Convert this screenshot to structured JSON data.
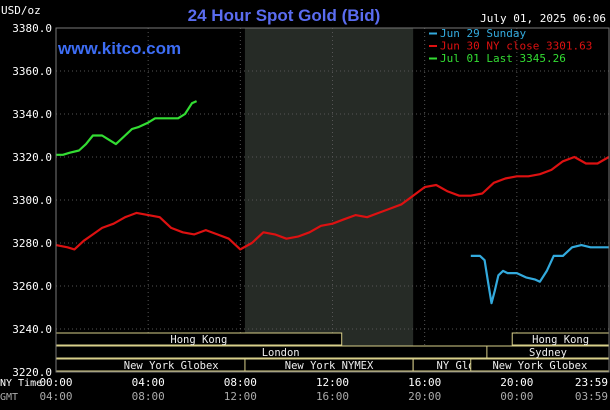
{
  "chart_data": {
    "type": "line",
    "title": "24 Hour Spot Gold (Bid)",
    "watermark": "www.kitco.com",
    "unit_label": "USD/oz",
    "date_label": "July 01, 2025 06:06",
    "ylim": [
      3220,
      3380
    ],
    "y_ticks": [
      "3380.0",
      "3360.0",
      "3340.0",
      "3320.0",
      "3300.0",
      "3280.0",
      "3260.0",
      "3240.0",
      "3220.0"
    ],
    "x_ticks": [
      "00:00",
      "04:00",
      "08:00",
      "12:00",
      "16:00",
      "20:00",
      "23:59"
    ],
    "x_ticks_gmt": [
      "04:00",
      "08:00",
      "12:00",
      "16:00",
      "20:00",
      "00:00",
      "03:59"
    ],
    "x_axis_label_top": "NY Time",
    "x_axis_label_bottom": "GMT",
    "background_color": "#000000",
    "plot_color": "#000000",
    "shade_color": "#262b26",
    "grid": true,
    "legend": [
      {
        "text": "Jun 29 Sunday",
        "color": "#33aadd"
      },
      {
        "text": "Jun 30 NY close 3301.63",
        "color": "#dd1111"
      },
      {
        "text": "Jul 01 Last 3345.26",
        "color": "#33dd33"
      }
    ],
    "sessions": [
      {
        "label": "Hong Kong",
        "row": 1,
        "start": 0,
        "end": 12.4
      },
      {
        "label": "London",
        "row": 2,
        "start": 0,
        "end": 19.5
      },
      {
        "label": "New York Globex",
        "row": 3,
        "start": 0,
        "end": 10
      },
      {
        "label": "New York NYMEX",
        "row": 3,
        "start": 8.2,
        "end": 15.5
      },
      {
        "label": "NY Globex",
        "row": 3,
        "start": 15.5,
        "end": 20
      },
      {
        "label": "Hong Kong",
        "row": 1,
        "start": 19.8,
        "end": 24
      },
      {
        "label": "Sydney",
        "row": 2,
        "start": 18.7,
        "end": 24
      },
      {
        "label": "New York Globex",
        "row": 3,
        "start": 18,
        "end": 24
      }
    ],
    "series": [
      {
        "color": "#dd1111",
        "x": [
          0,
          0.5,
          0.8,
          1.2,
          1.6,
          2,
          2.5,
          3,
          3.5,
          4,
          4.5,
          5,
          5.5,
          6,
          6.5,
          7,
          7.5,
          8,
          8.5,
          9,
          9.5,
          10,
          10.5,
          11,
          11.5,
          12,
          12.5,
          13,
          13.5,
          14,
          14.5,
          15,
          15.5,
          16,
          16.5,
          17,
          17.5,
          18,
          18.5,
          19,
          19.5,
          20,
          20.5,
          21,
          21.5,
          22,
          22.5,
          23,
          23.5,
          23.99
        ],
        "values": [
          3279,
          3278,
          3277,
          3281,
          3284,
          3287,
          3289,
          3292,
          3294,
          3293,
          3292,
          3287,
          3285,
          3284,
          3286,
          3284,
          3282,
          3277,
          3280,
          3285,
          3284,
          3282,
          3283,
          3285,
          3288,
          3289,
          3291,
          3293,
          3292,
          3294,
          3296,
          3298,
          3302,
          3306,
          3307,
          3304,
          3302,
          3302,
          3303,
          3308,
          3310,
          3311,
          3311,
          3312,
          3314,
          3318,
          3320,
          3317,
          3317,
          3320
        ]
      },
      {
        "color": "#33aadd",
        "x": [
          18,
          18.4,
          18.6,
          18.75,
          18.9,
          19.05,
          19.2,
          19.4,
          19.6,
          20,
          20.4,
          20.8,
          21,
          21.3,
          21.6,
          22,
          22.4,
          22.8,
          23.2,
          23.6,
          23.99
        ],
        "values": [
          3274,
          3274,
          3272,
          3262,
          3252,
          3258,
          3265,
          3267,
          3266,
          3266,
          3264,
          3263,
          3262,
          3267,
          3274,
          3274,
          3278,
          3279,
          3278,
          3278,
          3278
        ]
      },
      {
        "color": "#33dd33",
        "x": [
          0,
          0.3,
          0.6,
          1,
          1.3,
          1.6,
          2,
          2.3,
          2.6,
          3,
          3.3,
          3.6,
          4,
          4.3,
          4.6,
          5,
          5.3,
          5.6,
          5.9,
          6.1
        ],
        "values": [
          3321,
          3321,
          3322,
          3323,
          3326,
          3330,
          3330,
          3328,
          3326,
          3330,
          3333,
          3334,
          3336,
          3338,
          3338,
          3338,
          3338,
          3340,
          3345,
          3346
        ]
      }
    ]
  }
}
